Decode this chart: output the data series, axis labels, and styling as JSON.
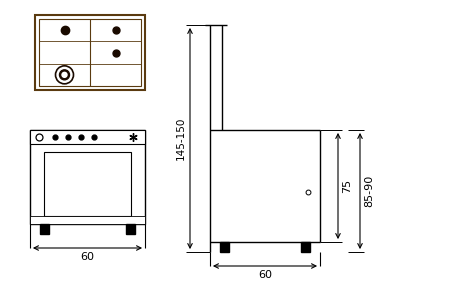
{
  "bg_color": "#ffffff",
  "line_color": "#000000",
  "dim_60_label": "60",
  "dim_145_150_label": "145-150",
  "dim_75_label": "75",
  "dim_85_90_label": "85-90",
  "cooktop_color": "#5a3a10",
  "burner_color": "#1a0a00"
}
